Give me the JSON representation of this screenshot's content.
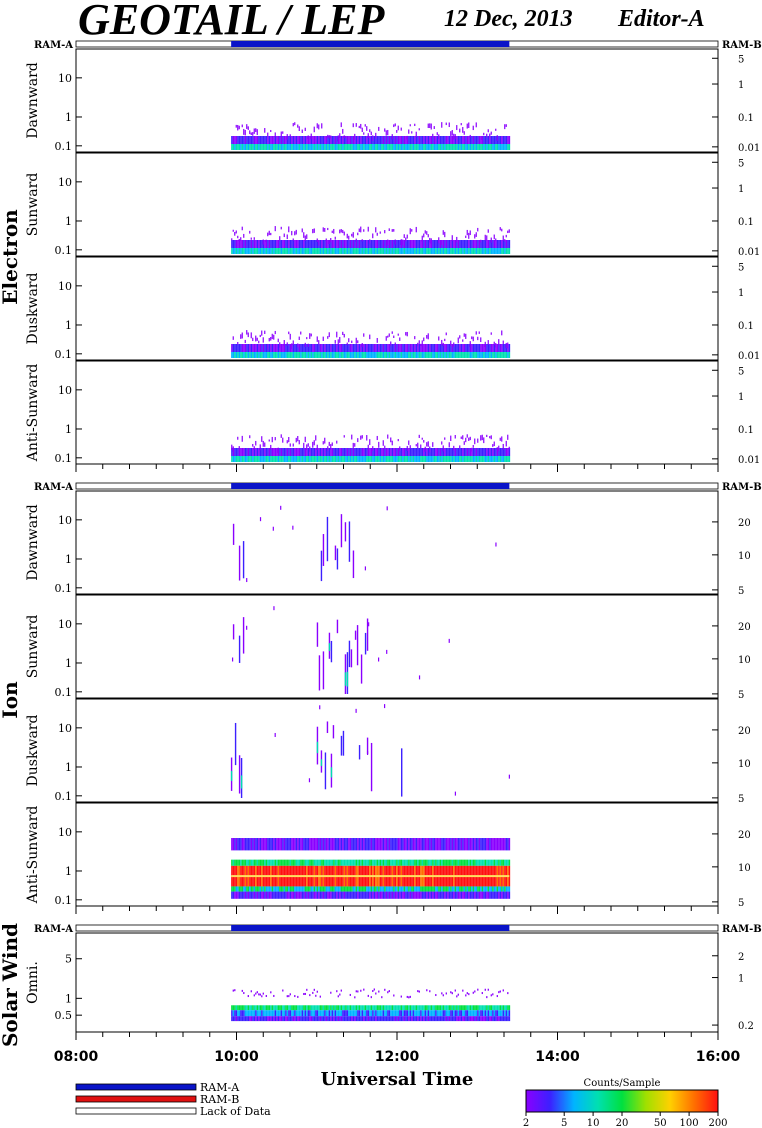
{
  "header": {
    "title": "GEOTAIL / LEP",
    "date": "12 Dec, 2013",
    "editor": "Editor-A"
  },
  "mode_labels": {
    "left": "RAM-A",
    "right": "RAM-B"
  },
  "colors": {
    "ram_a": "#0a14c8",
    "ram_b": "#e01010",
    "lack": "#ffffff",
    "colorbar": [
      "#8a00ff",
      "#3c20ff",
      "#00b4ff",
      "#00e0b0",
      "#00e040",
      "#a0e000",
      "#ffd000",
      "#ff7000",
      "#ff1010"
    ]
  },
  "chart_data": {
    "type": "heatmap",
    "xlabel": "Universal Time",
    "x_ticks": [
      "08:00",
      "10:00",
      "12:00",
      "14:00",
      "16:00"
    ],
    "x_range": [
      "08:00",
      "16:00"
    ],
    "data_start": "09:56",
    "data_end": "13:24",
    "groups": [
      {
        "name": "Electron",
        "panels": [
          {
            "label": "Dawnward",
            "left_ticks": [
              "10",
              "1",
              "0.1"
            ],
            "right_ticks": [
              "5",
              "1",
              "0.1",
              "0.01"
            ]
          },
          {
            "label": "Sunward",
            "left_ticks": [
              "10",
              "1",
              "0.1"
            ],
            "right_ticks": [
              "5",
              "1",
              "0.1",
              "0.01"
            ]
          },
          {
            "label": "Duskward",
            "left_ticks": [
              "10",
              "1",
              "0.1"
            ],
            "right_ticks": [
              "5",
              "1",
              "0.1",
              "0.01"
            ]
          },
          {
            "label": "Anti-Sunward",
            "left_ticks": [
              "10",
              "1",
              "0.1"
            ],
            "right_ticks": [
              "5",
              "1",
              "0.1",
              "0.01"
            ]
          }
        ]
      },
      {
        "name": "Ion",
        "panels": [
          {
            "label": "Dawnward",
            "left_ticks": [
              "10",
              "1",
              "0.1"
            ],
            "right_ticks": [
              "20",
              "10",
              "5"
            ]
          },
          {
            "label": "Sunward",
            "left_ticks": [
              "10",
              "1",
              "0.1"
            ],
            "right_ticks": [
              "20",
              "10",
              "5"
            ]
          },
          {
            "label": "Duskward",
            "left_ticks": [
              "10",
              "1",
              "0.1"
            ],
            "right_ticks": [
              "20",
              "10",
              "5"
            ]
          },
          {
            "label": "Anti-Sunward",
            "left_ticks": [
              "10",
              "1",
              "0.1"
            ],
            "right_ticks": [
              "20",
              "10",
              "5"
            ]
          }
        ]
      },
      {
        "name": "Solar Wind",
        "panels": [
          {
            "label": "Omni.",
            "left_ticks": [
              "5",
              "1",
              "0.5"
            ],
            "right_ticks": [
              "2",
              "1",
              "0.2"
            ]
          }
        ]
      }
    ],
    "legend": [
      "RAM-A",
      "RAM-B",
      "Lack of Data"
    ],
    "colorbar": {
      "title": "Counts/Sample",
      "ticks": [
        "2",
        "5",
        "10",
        "20",
        "50",
        "100",
        "200"
      ]
    }
  }
}
